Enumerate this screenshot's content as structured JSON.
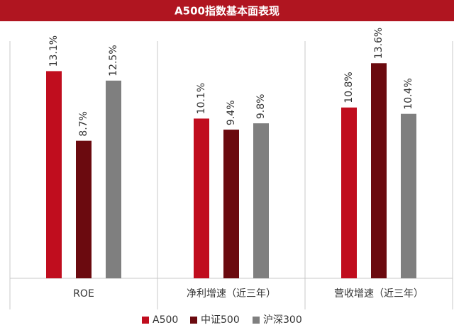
{
  "chart_data": {
    "type": "bar",
    "title": "A500指数基本面表现",
    "categories": [
      "ROE",
      "净利增速（近三年）",
      "营收增速（近三年）"
    ],
    "series": [
      {
        "name": "A500",
        "color": "#c00d1e",
        "values": [
          13.1,
          10.1,
          10.8
        ],
        "value_labels": [
          "13.1%",
          "10.1%",
          "10.8%"
        ]
      },
      {
        "name": "中证500",
        "color": "#6b0a0f",
        "values": [
          8.7,
          9.4,
          13.6
        ],
        "value_labels": [
          "8.7%",
          "9.4%",
          "13.6%"
        ]
      },
      {
        "name": "沪深300",
        "color": "#7f7f7f",
        "values": [
          12.5,
          9.8,
          10.4
        ],
        "value_labels": [
          "12.5%",
          "9.8%",
          "10.4%"
        ]
      }
    ],
    "ylim": [
      0,
      15
    ],
    "legend": "bottom"
  }
}
